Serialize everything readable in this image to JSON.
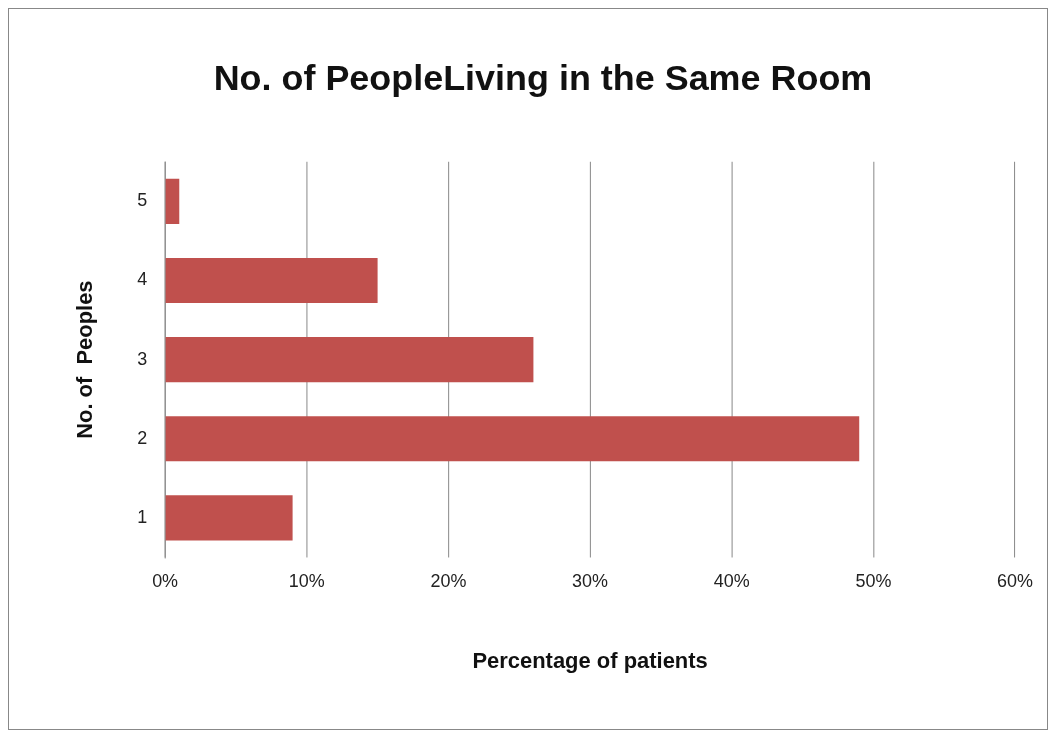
{
  "chart_data": {
    "type": "bar",
    "orientation": "horizontal",
    "title": "No. of PeopleLiving in the Same Room",
    "xlabel": "Percentage of patients",
    "ylabel": "No. of  Peoples",
    "categories": [
      "5",
      "4",
      "3",
      "2",
      "1"
    ],
    "values": [
      1,
      15,
      26,
      49,
      9
    ],
    "color": "#c0504d",
    "xlim": [
      0,
      60
    ],
    "xticks": [
      {
        "value": 0,
        "label": "0%"
      },
      {
        "value": 10,
        "label": "10%"
      },
      {
        "value": 20,
        "label": "20%"
      },
      {
        "value": 30,
        "label": "30%"
      },
      {
        "value": 40,
        "label": "40%"
      },
      {
        "value": 50,
        "label": "50%"
      },
      {
        "value": 60,
        "label": "60%"
      }
    ],
    "grid": "x",
    "legend": false
  }
}
